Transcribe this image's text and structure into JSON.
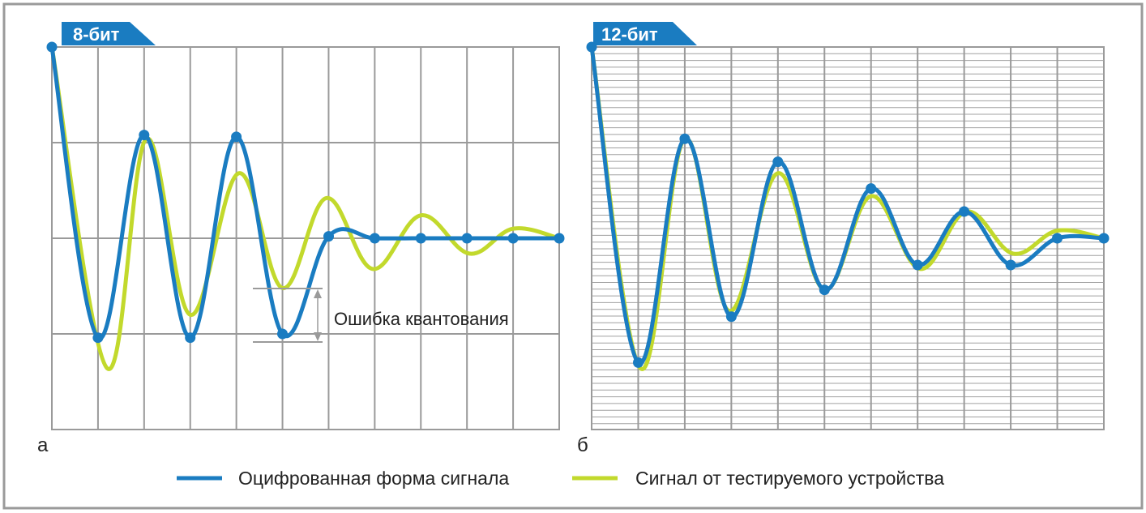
{
  "chart_data": [
    {
      "type": "line",
      "panel_label": "а",
      "badge": "8-бит",
      "x": [
        0,
        1,
        2,
        3,
        4,
        5,
        6,
        7,
        8,
        9,
        10,
        11
      ],
      "ylim": [
        -1,
        1
      ],
      "series": [
        {
          "name": "Оцифрованная форма сигнала",
          "color": "#1a7cc1",
          "values": [
            1.0,
            -0.52,
            0.54,
            -0.52,
            0.53,
            -0.5,
            0.01,
            0.0,
            0.0,
            0.0,
            0.0,
            0.0
          ]
        },
        {
          "name": "Сигнал от тестируемого устройства",
          "color": "#c2d92c",
          "points": [
            [
              0,
              1.0
            ],
            [
              1.2,
              -0.68
            ],
            [
              2.05,
              0.52
            ],
            [
              3.0,
              -0.4
            ],
            [
              4.05,
              0.34
            ],
            [
              5.0,
              -0.26
            ],
            [
              5.95,
              0.21
            ],
            [
              6.95,
              -0.16
            ],
            [
              8.0,
              0.12
            ],
            [
              9.05,
              -0.08
            ],
            [
              10.0,
              0.05
            ],
            [
              11.0,
              0.0
            ]
          ]
        }
      ],
      "annotation": "Ошибка квантования",
      "grid": true
    },
    {
      "type": "line",
      "panel_label": "б",
      "badge": "12-бит",
      "x": [
        0,
        1,
        2,
        3,
        4,
        5,
        6,
        7,
        8,
        9,
        10,
        11
      ],
      "ylim": [
        -1,
        1
      ],
      "series": [
        {
          "name": "Оцифрованная форма сигнала",
          "color": "#1a7cc1",
          "values": [
            1.0,
            -0.65,
            0.52,
            -0.41,
            0.4,
            -0.27,
            0.26,
            -0.14,
            0.14,
            -0.14,
            0.0,
            0.0
          ]
        },
        {
          "name": "Сигнал от тестируемого устройства",
          "color": "#c2d92c",
          "points": [
            [
              0,
              1.0
            ],
            [
              1.05,
              -0.68
            ],
            [
              2.0,
              0.52
            ],
            [
              2.95,
              -0.38
            ],
            [
              4.0,
              0.34
            ],
            [
              5.0,
              -0.27
            ],
            [
              6.0,
              0.22
            ],
            [
              7.05,
              -0.16
            ],
            [
              8.05,
              0.14
            ],
            [
              9.05,
              -0.08
            ],
            [
              10.0,
              0.04
            ],
            [
              11.0,
              0.0
            ]
          ]
        }
      ],
      "grid": true
    }
  ],
  "legend": {
    "placement": "bottom-center",
    "items": [
      {
        "label": "Оцифрованная форма сигнала",
        "color": "#1a7cc1"
      },
      {
        "label": "Сигнал от тестируемого устройства",
        "color": "#c2d92c"
      }
    ]
  }
}
